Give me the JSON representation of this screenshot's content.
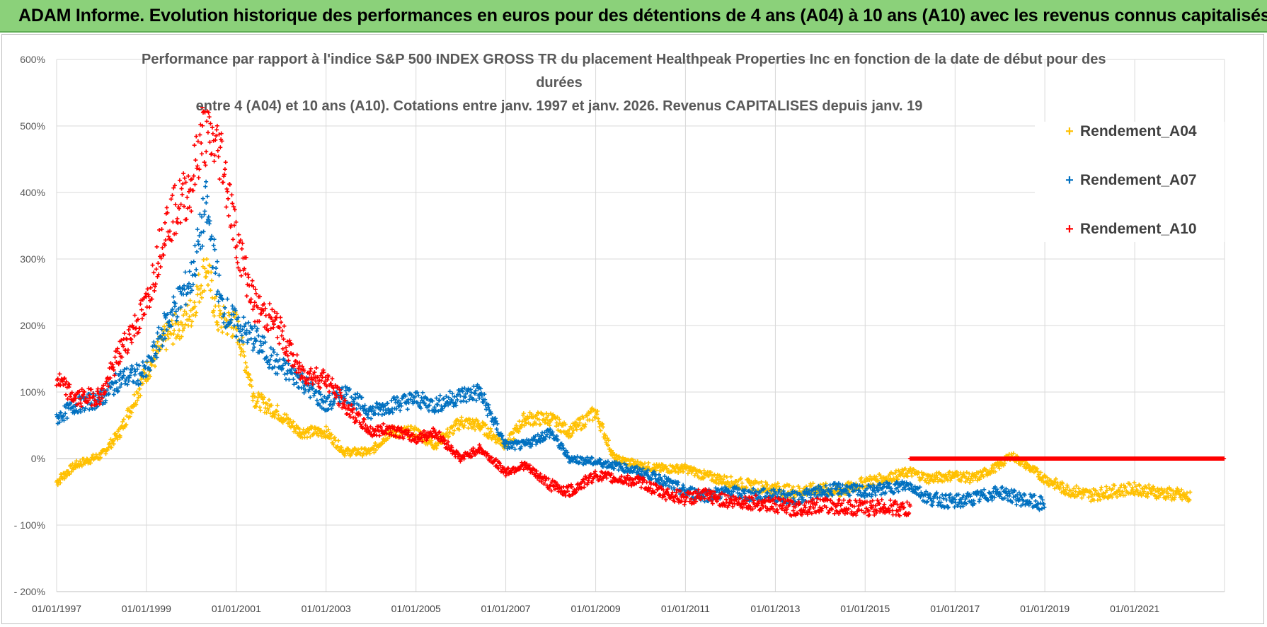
{
  "banner": {
    "title": "ADAM Informe. Evolution historique des performances en euros pour des détentions de 4 ans (A04) à 10 ans (A10) avec les revenus connus capitalisés"
  },
  "chart_data": {
    "type": "scatter",
    "title_lines": [
      "Performance par rapport à l'indice S&P 500 INDEX GROSS TR  du placement Healthpeak Properties Inc en fonction de la date de début pour des",
      "durées",
      "entre 4 (A04) et 10 ans (A10).  Cotations entre janv. 1997 et janv. 2026. Revenus CAPITALISES depuis janv. 19"
    ],
    "ylim": [
      -200,
      600
    ],
    "xlim": [
      "1997-01-01",
      "2023-01-01"
    ],
    "y_ticks": [
      "600%",
      "500%",
      "400%",
      "300%",
      "200%",
      "100%",
      "0%",
      "- 100%",
      "- 200%"
    ],
    "x_ticks": [
      "01/01/1997",
      "01/01/1999",
      "01/01/2001",
      "01/01/2003",
      "01/01/2005",
      "01/01/2007",
      "01/01/2009",
      "01/01/2011",
      "01/01/2013",
      "01/01/2015",
      "01/01/2017",
      "01/01/2019",
      "01/01/2021"
    ],
    "grid": true,
    "legend_position": "top-right",
    "series": [
      {
        "name": "Rendement_A04",
        "color": "#ffc000",
        "points": [
          [
            "1997-01-01",
            -35
          ],
          [
            "1997-06-01",
            -10
          ],
          [
            "1998-01-01",
            5
          ],
          [
            "1998-06-01",
            40
          ],
          [
            "1999-01-01",
            130
          ],
          [
            "1999-06-01",
            180
          ],
          [
            "2000-01-01",
            220
          ],
          [
            "2000-05-01",
            290
          ],
          [
            "2000-08-01",
            210
          ],
          [
            "2001-01-01",
            200
          ],
          [
            "2001-06-01",
            90
          ],
          [
            "2001-12-01",
            70
          ],
          [
            "2002-06-01",
            40
          ],
          [
            "2003-01-01",
            40
          ],
          [
            "2003-06-01",
            10
          ],
          [
            "2004-01-01",
            10
          ],
          [
            "2004-06-01",
            40
          ],
          [
            "2005-01-01",
            40
          ],
          [
            "2005-06-01",
            20
          ],
          [
            "2006-01-01",
            55
          ],
          [
            "2006-06-01",
            50
          ],
          [
            "2007-01-01",
            20
          ],
          [
            "2007-06-01",
            60
          ],
          [
            "2008-01-01",
            60
          ],
          [
            "2008-06-01",
            40
          ],
          [
            "2009-01-01",
            70
          ],
          [
            "2009-06-01",
            0
          ],
          [
            "2010-01-01",
            -10
          ],
          [
            "2010-06-01",
            -15
          ],
          [
            "2011-01-01",
            -15
          ],
          [
            "2011-06-01",
            -25
          ],
          [
            "2012-01-01",
            -35
          ],
          [
            "2012-06-01",
            -40
          ],
          [
            "2013-01-01",
            -45
          ],
          [
            "2013-06-01",
            -50
          ],
          [
            "2014-01-01",
            -45
          ],
          [
            "2014-06-01",
            -50
          ],
          [
            "2015-01-01",
            -35
          ],
          [
            "2015-06-01",
            -30
          ],
          [
            "2016-01-01",
            -20
          ],
          [
            "2016-06-01",
            -30
          ],
          [
            "2017-01-01",
            -25
          ],
          [
            "2017-06-01",
            -30
          ],
          [
            "2018-01-01",
            -10
          ],
          [
            "2018-04-01",
            5
          ],
          [
            "2018-08-01",
            -10
          ],
          [
            "2019-01-01",
            -30
          ],
          [
            "2019-06-01",
            -45
          ],
          [
            "2020-01-01",
            -55
          ],
          [
            "2020-06-01",
            -50
          ],
          [
            "2021-01-01",
            -45
          ],
          [
            "2021-06-01",
            -50
          ],
          [
            "2022-01-01",
            -55
          ],
          [
            "2022-04-01",
            -60
          ]
        ]
      },
      {
        "name": "Rendement_A07",
        "color": "#0070c0",
        "points": [
          [
            "1997-01-01",
            60
          ],
          [
            "1997-06-01",
            80
          ],
          [
            "1998-01-01",
            90
          ],
          [
            "1998-06-01",
            120
          ],
          [
            "1999-01-01",
            130
          ],
          [
            "1999-06-01",
            200
          ],
          [
            "2000-01-01",
            270
          ],
          [
            "2000-05-01",
            380
          ],
          [
            "2000-09-01",
            230
          ],
          [
            "2001-01-01",
            200
          ],
          [
            "2001-06-01",
            180
          ],
          [
            "2001-12-01",
            140
          ],
          [
            "2002-06-01",
            120
          ],
          [
            "2003-01-01",
            80
          ],
          [
            "2003-06-01",
            100
          ],
          [
            "2004-01-01",
            70
          ],
          [
            "2004-06-01",
            80
          ],
          [
            "2005-01-01",
            90
          ],
          [
            "2005-06-01",
            80
          ],
          [
            "2006-01-01",
            95
          ],
          [
            "2006-06-01",
            100
          ],
          [
            "2007-01-01",
            20
          ],
          [
            "2007-06-01",
            20
          ],
          [
            "2008-01-01",
            40
          ],
          [
            "2008-06-01",
            0
          ],
          [
            "2009-01-01",
            -5
          ],
          [
            "2009-06-01",
            -10
          ],
          [
            "2010-01-01",
            -20
          ],
          [
            "2010-06-01",
            -30
          ],
          [
            "2011-01-01",
            -50
          ],
          [
            "2011-06-01",
            -55
          ],
          [
            "2012-01-01",
            -50
          ],
          [
            "2012-06-01",
            -55
          ],
          [
            "2013-01-01",
            -55
          ],
          [
            "2013-06-01",
            -60
          ],
          [
            "2014-01-01",
            -50
          ],
          [
            "2014-06-01",
            -45
          ],
          [
            "2015-01-01",
            -50
          ],
          [
            "2015-06-01",
            -45
          ],
          [
            "2016-01-01",
            -40
          ],
          [
            "2016-06-01",
            -60
          ],
          [
            "2017-01-01",
            -65
          ],
          [
            "2017-06-01",
            -60
          ],
          [
            "2018-01-01",
            -50
          ],
          [
            "2018-06-01",
            -60
          ],
          [
            "2019-01-01",
            -70
          ]
        ]
      },
      {
        "name": "Rendement_A10",
        "color": "#ff0000",
        "points": [
          [
            "1997-01-01",
            120
          ],
          [
            "1997-06-01",
            90
          ],
          [
            "1998-01-01",
            95
          ],
          [
            "1998-06-01",
            160
          ],
          [
            "1999-01-01",
            230
          ],
          [
            "1999-06-01",
            350
          ],
          [
            "2000-01-01",
            410
          ],
          [
            "2000-04-01",
            490
          ],
          [
            "2000-09-01",
            460
          ],
          [
            "2001-01-01",
            330
          ],
          [
            "2001-06-01",
            230
          ],
          [
            "2001-12-01",
            200
          ],
          [
            "2002-06-01",
            130
          ],
          [
            "2003-01-01",
            120
          ],
          [
            "2003-06-01",
            80
          ],
          [
            "2004-01-01",
            40
          ],
          [
            "2004-06-01",
            45
          ],
          [
            "2005-01-01",
            30
          ],
          [
            "2005-06-01",
            40
          ],
          [
            "2006-01-01",
            0
          ],
          [
            "2006-06-01",
            15
          ],
          [
            "2007-01-01",
            -20
          ],
          [
            "2007-06-01",
            -10
          ],
          [
            "2008-01-01",
            -40
          ],
          [
            "2008-06-01",
            -50
          ],
          [
            "2009-01-01",
            -25
          ],
          [
            "2009-06-01",
            -30
          ],
          [
            "2010-01-01",
            -35
          ],
          [
            "2010-06-01",
            -50
          ],
          [
            "2011-01-01",
            -60
          ],
          [
            "2011-06-01",
            -55
          ],
          [
            "2012-01-01",
            -65
          ],
          [
            "2012-06-01",
            -65
          ],
          [
            "2013-01-01",
            -70
          ],
          [
            "2013-06-01",
            -75
          ],
          [
            "2014-01-01",
            -70
          ],
          [
            "2014-06-01",
            -72
          ],
          [
            "2015-01-01",
            -75
          ],
          [
            "2015-06-01",
            -72
          ],
          [
            "2016-01-01",
            -78
          ],
          [
            "2016-01-02",
            0
          ],
          [
            "2017-01-01",
            0
          ],
          [
            "2019-01-01",
            0
          ],
          [
            "2021-01-01",
            0
          ],
          [
            "2023-01-01",
            0
          ]
        ]
      }
    ]
  }
}
